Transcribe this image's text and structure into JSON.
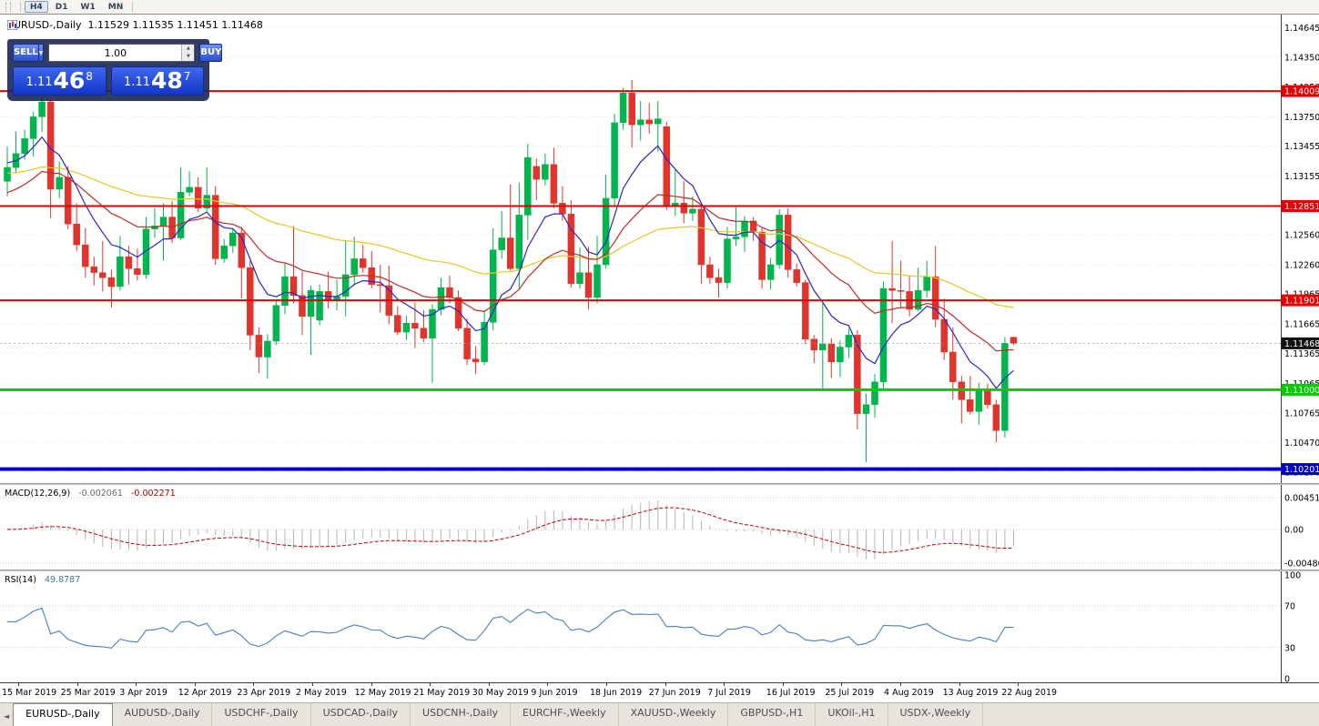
{
  "toolbar": {
    "timeframes": [
      "H4",
      "D1",
      "W1",
      "MN"
    ],
    "active": "H4"
  },
  "chart": {
    "symbol_title": "EURUSD-,Daily",
    "ohlc": "1.11529 1.11535 1.11451 1.11468"
  },
  "trade_panel": {
    "sell_label": "SELL",
    "buy_label": "BUY",
    "volume": "1.00",
    "sell_price": {
      "prefix": "1.11",
      "big": "46",
      "sup": "8"
    },
    "buy_price": {
      "prefix": "1.11",
      "big": "48",
      "sup": "7"
    }
  },
  "indicators": {
    "macd_label": {
      "name": "MACD(12,26,9)",
      "main": "-0.002061",
      "signal": "-0.002271"
    },
    "rsi_label": {
      "name": "RSI(14)",
      "value": "49.8787"
    }
  },
  "tabs": {
    "scroll_left": "◄",
    "active_index": 0,
    "items": [
      "EURUSD-,Daily",
      "AUDUSD-,Daily",
      "USDCHF-,Daily",
      "USDCAD-,Daily",
      "USDCNH-,Daily",
      "EURCHF-,Weekly",
      "XAUUSD-,Weekly",
      "GBPUSD-,H1",
      "UKOil-,H1",
      "USDX-,Weekly"
    ]
  },
  "chart_data": {
    "type": "candlestick",
    "symbol": "EURUSD-",
    "timeframe": "Daily",
    "price_range": {
      "max": 1.1478,
      "min": 1.1006
    },
    "colors": {
      "up": "#00b44e",
      "down": "#e0352c",
      "grid": "#e7e7e7"
    },
    "y_ticks": [
      {
        "v": 1.14645,
        "t": "1.14645"
      },
      {
        "v": 1.1435,
        "t": "1.14350"
      },
      {
        "v": 1.1405,
        "t": "1.14050"
      },
      {
        "v": 1.1375,
        "t": "1.13750"
      },
      {
        "v": 1.13455,
        "t": "1.13455"
      },
      {
        "v": 1.13155,
        "t": "1.13155"
      },
      {
        "v": 1.1286,
        "t": "1.12860"
      },
      {
        "v": 1.1256,
        "t": "1.12560"
      },
      {
        "v": 1.1226,
        "t": "1.12260"
      },
      {
        "v": 1.11965,
        "t": "1.11965"
      },
      {
        "v": 1.11665,
        "t": "1.11665"
      },
      {
        "v": 1.11365,
        "t": "1.11365"
      },
      {
        "v": 1.11065,
        "t": "1.11065"
      },
      {
        "v": 1.10765,
        "t": "1.10765"
      },
      {
        "v": 1.1047,
        "t": "1.10470"
      },
      {
        "v": 1.1017,
        "t": "1.10170"
      }
    ],
    "x_labels": [
      "15 Mar 2019",
      "25 Mar 2019",
      "3 Apr 2019",
      "12 Apr 2019",
      "23 Apr 2019",
      "2 May 2019",
      "12 May 2019",
      "21 May 2019",
      "30 May 2019",
      "9 Jun 2019",
      "18 Jun 2019",
      "27 Jun 2019",
      "7 Jul 2019",
      "16 Jul 2019",
      "25 Jul 2019",
      "4 Aug 2019",
      "13 Aug 2019",
      "22 Aug 2019"
    ],
    "levels": [
      {
        "price": 1.14009,
        "label": "1.14009",
        "color": "#e60000",
        "width": 2
      },
      {
        "price": 1.12851,
        "label": "1.12851",
        "color": "#e60000",
        "width": 2
      },
      {
        "price": 1.11901,
        "label": "1.11901",
        "color": "#e60000",
        "width": 2
      },
      {
        "price": 1.11,
        "label": "1.11000",
        "color": "#00cc00",
        "width": 3
      },
      {
        "price": 1.10201,
        "label": "1.10201",
        "color": "#0000d0",
        "width": 4
      }
    ],
    "bid": {
      "price": 1.11468,
      "label": "1.11468",
      "color": "#111111"
    },
    "moving_averages": [
      {
        "name": "ma-slow",
        "period": 55,
        "seed": 1.1318,
        "color": "#e0ca22"
      },
      {
        "name": "ma-mid",
        "period": 21,
        "seed": 1.1296,
        "color": "#c22a2a"
      },
      {
        "name": "ma-fast",
        "period": 8,
        "seed": 1.133,
        "color": "#2626c9"
      }
    ],
    "indicators": {
      "macd": {
        "fast": 12,
        "slow": 26,
        "signal_period": 9,
        "hist_color": "#b4b4b4",
        "signal_color": "#c40000",
        "y_ticks": [
          {
            "v": 0.004517,
            "t": "0.004517"
          },
          {
            "v": 0,
            "t": "0.00"
          },
          {
            "v": -0.004806,
            "t": "-0.004806"
          }
        ]
      },
      "rsi": {
        "period": 14,
        "color": "#4a7ec0",
        "levels": [
          70,
          30
        ],
        "y_ticks": [
          {
            "v": 100,
            "t": "100"
          },
          {
            "v": 70,
            "t": "70"
          },
          {
            "v": 30,
            "t": "30"
          },
          {
            "v": 0,
            "t": "0"
          }
        ]
      }
    },
    "candles": [
      [
        1.131,
        1.1345,
        1.1295,
        1.1324
      ],
      [
        1.1324,
        1.136,
        1.1318,
        1.1338
      ],
      [
        1.1338,
        1.1362,
        1.1332,
        1.1353
      ],
      [
        1.1353,
        1.138,
        1.1335,
        1.1375
      ],
      [
        1.1375,
        1.1395,
        1.136,
        1.139
      ],
      [
        1.139,
        1.1392,
        1.1273,
        1.1302
      ],
      [
        1.1302,
        1.133,
        1.1293,
        1.1314
      ],
      [
        1.1314,
        1.1325,
        1.1262,
        1.1267
      ],
      [
        1.1267,
        1.1288,
        1.124,
        1.1246
      ],
      [
        1.1246,
        1.1263,
        1.1213,
        1.1224
      ],
      [
        1.1224,
        1.1234,
        1.1205,
        1.1218
      ],
      [
        1.1218,
        1.125,
        1.1199,
        1.1213
      ],
      [
        1.1213,
        1.1221,
        1.1183,
        1.1204
      ],
      [
        1.1204,
        1.1255,
        1.12,
        1.1234
      ],
      [
        1.1234,
        1.1245,
        1.1206,
        1.1222
      ],
      [
        1.1222,
        1.1242,
        1.121,
        1.1216
      ],
      [
        1.1216,
        1.1274,
        1.1212,
        1.1262
      ],
      [
        1.1262,
        1.1283,
        1.1253,
        1.1265
      ],
      [
        1.1265,
        1.1288,
        1.123,
        1.1274
      ],
      [
        1.1274,
        1.129,
        1.1248,
        1.1253
      ],
      [
        1.1253,
        1.1324,
        1.1251,
        1.1299
      ],
      [
        1.1299,
        1.132,
        1.1295,
        1.1304
      ],
      [
        1.1304,
        1.1314,
        1.1279,
        1.1283
      ],
      [
        1.1283,
        1.1324,
        1.128,
        1.1296
      ],
      [
        1.1296,
        1.1305,
        1.1226,
        1.1232
      ],
      [
        1.1232,
        1.1252,
        1.1228,
        1.1245
      ],
      [
        1.1245,
        1.1262,
        1.1238,
        1.1258
      ],
      [
        1.1258,
        1.1264,
        1.1192,
        1.1223
      ],
      [
        1.1223,
        1.123,
        1.114,
        1.1155
      ],
      [
        1.1155,
        1.1163,
        1.1117,
        1.1133
      ],
      [
        1.1133,
        1.1156,
        1.1111,
        1.1149
      ],
      [
        1.1149,
        1.119,
        1.1145,
        1.1185
      ],
      [
        1.1185,
        1.1228,
        1.1176,
        1.1214
      ],
      [
        1.1214,
        1.1265,
        1.1187,
        1.1195
      ],
      [
        1.1195,
        1.1219,
        1.1155,
        1.1174
      ],
      [
        1.1174,
        1.1205,
        1.1135,
        1.12
      ],
      [
        1.117,
        1.1206,
        1.1165,
        1.1199
      ],
      [
        1.1199,
        1.1219,
        1.1182,
        1.119
      ],
      [
        1.119,
        1.1211,
        1.118,
        1.1194
      ],
      [
        1.1194,
        1.1251,
        1.1174,
        1.1216
      ],
      [
        1.1216,
        1.1254,
        1.1205,
        1.1232
      ],
      [
        1.1232,
        1.1246,
        1.1218,
        1.1223
      ],
      [
        1.1223,
        1.124,
        1.1202,
        1.1206
      ],
      [
        1.1206,
        1.1226,
        1.1178,
        1.1205
      ],
      [
        1.1205,
        1.1225,
        1.1166,
        1.1175
      ],
      [
        1.1175,
        1.1184,
        1.1155,
        1.1158
      ],
      [
        1.1158,
        1.1175,
        1.115,
        1.1167
      ],
      [
        1.1167,
        1.1188,
        1.1142,
        1.1162
      ],
      [
        1.1162,
        1.118,
        1.1148,
        1.1152
      ],
      [
        1.1152,
        1.1186,
        1.1107,
        1.1181
      ],
      [
        1.1181,
        1.1213,
        1.1175,
        1.1203
      ],
      [
        1.1203,
        1.1215,
        1.1187,
        1.1193
      ],
      [
        1.1193,
        1.12,
        1.1159,
        1.1162
      ],
      [
        1.1162,
        1.1172,
        1.1125,
        1.1131
      ],
      [
        1.1131,
        1.1144,
        1.1116,
        1.1128
      ],
      [
        1.1128,
        1.118,
        1.1125,
        1.1168
      ],
      [
        1.1168,
        1.1263,
        1.116,
        1.1241
      ],
      [
        1.1241,
        1.128,
        1.1232,
        1.1253
      ],
      [
        1.1253,
        1.1307,
        1.122,
        1.1222
      ],
      [
        1.1222,
        1.1309,
        1.1201,
        1.1276
      ],
      [
        1.1276,
        1.1348,
        1.1251,
        1.1334
      ],
      [
        1.1325,
        1.1333,
        1.1291,
        1.1312
      ],
      [
        1.1312,
        1.1338,
        1.1306,
        1.1327
      ],
      [
        1.1327,
        1.1344,
        1.1283,
        1.1288
      ],
      [
        1.1288,
        1.1305,
        1.127,
        1.1277
      ],
      [
        1.1277,
        1.1291,
        1.1203,
        1.1207
      ],
      [
        1.1207,
        1.1243,
        1.1202,
        1.1218
      ],
      [
        1.1218,
        1.1244,
        1.1181,
        1.1193
      ],
      [
        1.1193,
        1.1255,
        1.1187,
        1.1226
      ],
      [
        1.1226,
        1.1317,
        1.1222,
        1.1293
      ],
      [
        1.1293,
        1.1378,
        1.1285,
        1.1369
      ],
      [
        1.1369,
        1.1404,
        1.1362,
        1.1399
      ],
      [
        1.1399,
        1.1412,
        1.1344,
        1.1367
      ],
      [
        1.1367,
        1.1391,
        1.1351,
        1.1372
      ],
      [
        1.1372,
        1.1389,
        1.1358,
        1.1368
      ],
      [
        1.1368,
        1.1391,
        1.134,
        1.1373
      ],
      [
        1.1365,
        1.137,
        1.1281,
        1.1285
      ],
      [
        1.1285,
        1.1322,
        1.1275,
        1.1288
      ],
      [
        1.1288,
        1.131,
        1.1268,
        1.1278
      ],
      [
        1.1278,
        1.1295,
        1.127,
        1.1282
      ],
      [
        1.1282,
        1.1288,
        1.1207,
        1.1226
      ],
      [
        1.1226,
        1.1234,
        1.1207,
        1.1213
      ],
      [
        1.1213,
        1.1222,
        1.1193,
        1.1208
      ],
      [
        1.1208,
        1.1264,
        1.1202,
        1.1252
      ],
      [
        1.1252,
        1.1285,
        1.1245,
        1.1254
      ],
      [
        1.1254,
        1.1275,
        1.1239,
        1.127
      ],
      [
        1.127,
        1.1274,
        1.125,
        1.1259
      ],
      [
        1.1259,
        1.1263,
        1.1202,
        1.1211
      ],
      [
        1.1211,
        1.1233,
        1.1201,
        1.1226
      ],
      [
        1.1226,
        1.1282,
        1.1222,
        1.1276
      ],
      [
        1.1276,
        1.1283,
        1.1213,
        1.1221
      ],
      [
        1.1221,
        1.1227,
        1.1204,
        1.1208
      ],
      [
        1.1208,
        1.1211,
        1.1146,
        1.1151
      ],
      [
        1.1151,
        1.1155,
        1.1127,
        1.114
      ],
      [
        1.114,
        1.1187,
        1.1101,
        1.1146
      ],
      [
        1.1146,
        1.1152,
        1.1112,
        1.1128
      ],
      [
        1.1128,
        1.115,
        1.1113,
        1.1143
      ],
      [
        1.1143,
        1.1162,
        1.1132,
        1.1155
      ],
      [
        1.1155,
        1.116,
        1.106,
        1.1076
      ],
      [
        1.1076,
        1.1096,
        1.1027,
        1.1085
      ],
      [
        1.1085,
        1.1116,
        1.1072,
        1.1108
      ],
      [
        1.1108,
        1.1209,
        1.1101,
        1.1202
      ],
      [
        1.1202,
        1.125,
        1.1167,
        1.12
      ],
      [
        1.12,
        1.123,
        1.1183,
        1.1199
      ],
      [
        1.1199,
        1.1215,
        1.1174,
        1.1181
      ],
      [
        1.1181,
        1.1223,
        1.1179,
        1.12
      ],
      [
        1.12,
        1.123,
        1.1193,
        1.1214
      ],
      [
        1.1214,
        1.1245,
        1.1163,
        1.1171
      ],
      [
        1.1171,
        1.1192,
        1.113,
        1.1138
      ],
      [
        1.1138,
        1.1163,
        1.109,
        1.1108
      ],
      [
        1.1108,
        1.1114,
        1.1066,
        1.109
      ],
      [
        1.109,
        1.1114,
        1.1075,
        1.1078
      ],
      [
        1.1078,
        1.1107,
        1.1065,
        1.1099
      ],
      [
        1.1099,
        1.1106,
        1.1081,
        1.1085
      ],
      [
        1.1085,
        1.109,
        1.1047,
        1.1059
      ],
      [
        1.1059,
        1.1153,
        1.1052,
        1.1147
      ],
      [
        1.11529,
        1.11535,
        1.11451,
        1.11468
      ]
    ]
  }
}
